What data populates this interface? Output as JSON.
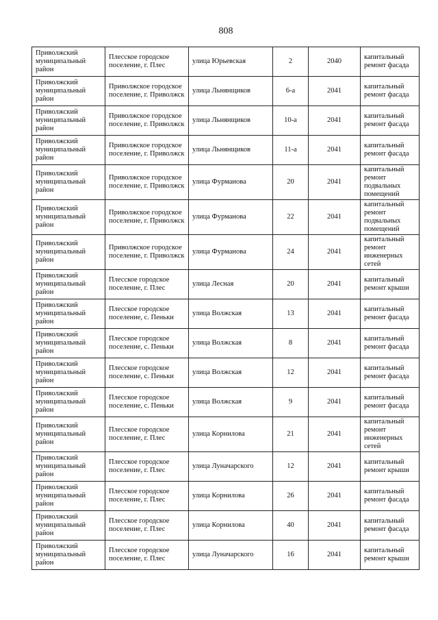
{
  "page_number": "808",
  "rows": [
    {
      "district": "Приволжский муниципальный район",
      "settlement": "Плесское городское поселение, г. Плес",
      "street": "улица Юрьевская",
      "house": "2",
      "year": "2040",
      "work": "капитальный ремонт фасада"
    },
    {
      "district": "Приволжский муниципальный район",
      "settlement": "Приволжское городское поселение, г. Приволжск",
      "street": "улица Льнянщиков",
      "house": "6-а",
      "year": "2041",
      "work": "капитальный ремонт фасада"
    },
    {
      "district": "Приволжский муниципальный район",
      "settlement": "Приволжское городское поселение, г. Приволжск",
      "street": "улица Льнянщиков",
      "house": "10-а",
      "year": "2041",
      "work": "капитальный ремонт фасада"
    },
    {
      "district": "Приволжский муниципальный район",
      "settlement": "Приволжское городское поселение, г. Приволжск",
      "street": "улица Льнянщиков",
      "house": "11-а",
      "year": "2041",
      "work": "капитальный ремонт фасада"
    },
    {
      "district": "Приволжский муниципальный район",
      "settlement": "Приволжское городское поселение, г. Приволжск",
      "street": "улица Фурманова",
      "house": "20",
      "year": "2041",
      "work": "капитальный ремонт подвальных помещений"
    },
    {
      "district": "Приволжский муниципальный район",
      "settlement": "Приволжское городское поселение, г. Приволжск",
      "street": "улица Фурманова",
      "house": "22",
      "year": "2041",
      "work": "капитальный ремонт подвальных помещений"
    },
    {
      "district": "Приволжский муниципальный район",
      "settlement": "Приволжское городское поселение, г. Приволжск",
      "street": "улица Фурманова",
      "house": "24",
      "year": "2041",
      "work": "капитальный ремонт инженерных сетей"
    },
    {
      "district": "Приволжский муниципальный район",
      "settlement": "Плесское городское поселение, г. Плес",
      "street": "улица Лесная",
      "house": "20",
      "year": "2041",
      "work": "капитальный ремонт крыши"
    },
    {
      "district": "Приволжский муниципальный район",
      "settlement": "Плесское городское поселение, с. Пеньки",
      "street": "улица Волжская",
      "house": "13",
      "year": "2041",
      "work": "капитальный ремонт фасада"
    },
    {
      "district": "Приволжский муниципальный район",
      "settlement": "Плесское городское поселение, с. Пеньки",
      "street": "улица Волжская",
      "house": "8",
      "year": "2041",
      "work": "капитальный ремонт фасада"
    },
    {
      "district": "Приволжский муниципальный район",
      "settlement": "Плесское городское поселение, с. Пеньки",
      "street": "улица Волжская",
      "house": "12",
      "year": "2041",
      "work": "капитальный ремонт фасада"
    },
    {
      "district": "Приволжский муниципальный район",
      "settlement": "Плесское городское поселение, с. Пеньки",
      "street": "улица Волжская",
      "house": "9",
      "year": "2041",
      "work": "капитальный ремонт фасада"
    },
    {
      "district": "Приволжский муниципальный район",
      "settlement": "Плесское городское поселение, г. Плес",
      "street": "улица Корнилова",
      "house": "21",
      "year": "2041",
      "work": "капитальный ремонт инженерных сетей"
    },
    {
      "district": "Приволжский муниципальный район",
      "settlement": "Плесское городское поселение, г. Плес",
      "street": "улица Луначарского",
      "house": "12",
      "year": "2041",
      "work": "капитальный ремонт крыши"
    },
    {
      "district": "Приволжский муниципальный район",
      "settlement": "Плесское городское поселение, г. Плес",
      "street": "улица Корнилова",
      "house": "26",
      "year": "2041",
      "work": "капитальный ремонт фасада"
    },
    {
      "district": "Приволжский муниципальный район",
      "settlement": "Плесское городское поселение, г. Плес",
      "street": "улица Корнилова",
      "house": "40",
      "year": "2041",
      "work": "капитальный ремонт фасада"
    },
    {
      "district": "Приволжский муниципальный район",
      "settlement": "Плесское городское поселение, г. Плес",
      "street": "улица Луначарского",
      "house": "16",
      "year": "2041",
      "work": "капитальный ремонт крыши"
    }
  ]
}
